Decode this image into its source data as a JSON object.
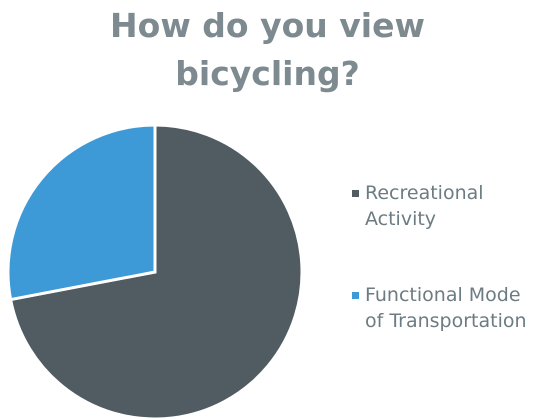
{
  "chart_data": {
    "type": "pie",
    "title": "How do you view bicycling?",
    "categories": [
      "Recreational Activity",
      "Functional Mode of Transportation"
    ],
    "values": [
      72,
      28
    ],
    "colors": [
      "#505b62",
      "#3e9ad6"
    ],
    "legend": "right"
  }
}
